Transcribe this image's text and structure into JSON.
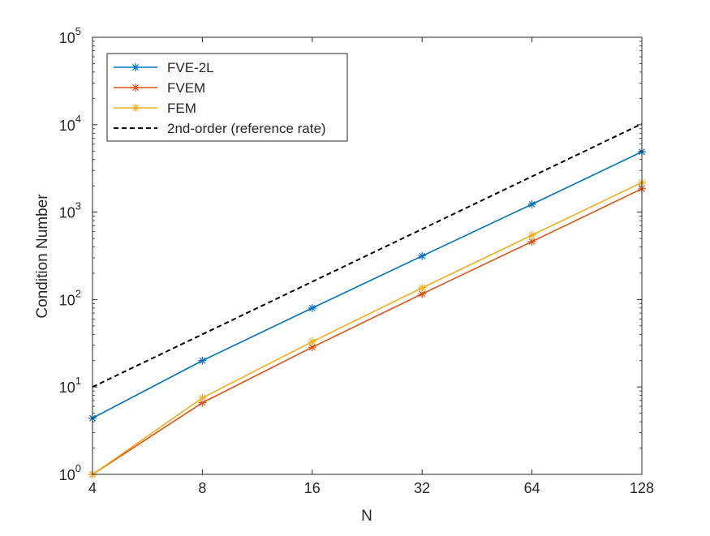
{
  "chart_data": {
    "type": "line",
    "title": "",
    "xlabel": "N",
    "ylabel": "Condition Number",
    "x_scale": "log2",
    "y_scale": "log10",
    "xlim": [
      4,
      128
    ],
    "ylim": [
      1,
      100000
    ],
    "x": [
      4,
      8,
      16,
      32,
      64,
      128
    ],
    "x_tick_labels": [
      "4",
      "8",
      "16",
      "32",
      "64",
      "128"
    ],
    "y_ticks": [
      {
        "base": "10",
        "exp": "0",
        "value": 1
      },
      {
        "base": "10",
        "exp": "1",
        "value": 10
      },
      {
        "base": "10",
        "exp": "2",
        "value": 100
      },
      {
        "base": "10",
        "exp": "3",
        "value": 1000
      },
      {
        "base": "10",
        "exp": "4",
        "value": 10000
      },
      {
        "base": "10",
        "exp": "5",
        "value": 100000
      }
    ],
    "legend_position": "top-left",
    "grid": false,
    "series": [
      {
        "name": "FVE-2L",
        "color": "#0072BD",
        "marker": "asterisk",
        "dashed": false,
        "values": [
          4.4,
          20,
          80,
          315,
          1230,
          4900
        ]
      },
      {
        "name": "FVEM",
        "color": "#D95319",
        "marker": "asterisk",
        "dashed": false,
        "values": [
          1.0,
          6.6,
          28.5,
          116,
          460,
          1850
        ]
      },
      {
        "name": "FEM",
        "color": "#EDB120",
        "marker": "asterisk",
        "dashed": false,
        "values": [
          1.0,
          7.5,
          33,
          136,
          545,
          2180
        ]
      },
      {
        "name": "2nd-order (reference rate)",
        "color": "#000000",
        "marker": "none",
        "dashed": true,
        "values": [
          10,
          40,
          160,
          640,
          2560,
          10240
        ]
      }
    ]
  }
}
